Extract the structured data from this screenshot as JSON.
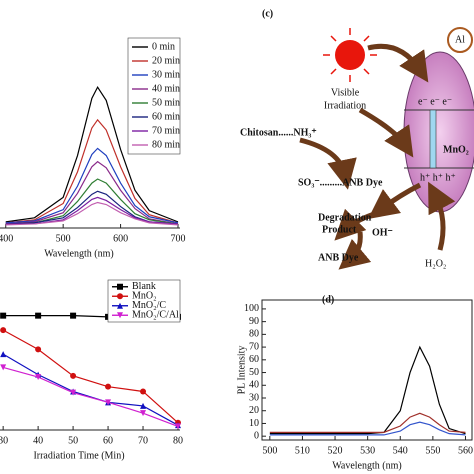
{
  "chart_data": [
    {
      "type": "line",
      "xlabel": "Wavelength (nm)",
      "legend": "upper right",
      "x": [
        400,
        450,
        500,
        525,
        550,
        560,
        575,
        600,
        625,
        650,
        700
      ],
      "xlim": [
        390,
        700
      ],
      "xticks": [
        400,
        500,
        600,
        700
      ],
      "ylim": [
        0,
        1.45
      ],
      "series": [
        {
          "name": "0 min",
          "color": "#000000",
          "values": [
            0.06,
            0.1,
            0.3,
            0.71,
            1.27,
            1.38,
            1.25,
            0.77,
            0.37,
            0.17,
            0.06
          ]
        },
        {
          "name": "20 min",
          "color": "#c0302a",
          "values": [
            0.05,
            0.08,
            0.24,
            0.55,
            0.98,
            1.06,
            0.96,
            0.6,
            0.29,
            0.13,
            0.05
          ]
        },
        {
          "name": "30 min",
          "color": "#1f3fbf",
          "values": [
            0.05,
            0.07,
            0.18,
            0.41,
            0.72,
            0.78,
            0.71,
            0.44,
            0.22,
            0.11,
            0.05
          ]
        },
        {
          "name": "40 min",
          "color": "#8a2a8a",
          "values": [
            0.04,
            0.06,
            0.15,
            0.34,
            0.6,
            0.65,
            0.59,
            0.37,
            0.19,
            0.09,
            0.04
          ]
        },
        {
          "name": "50 min",
          "color": "#2e7d32",
          "values": [
            0.04,
            0.05,
            0.12,
            0.26,
            0.44,
            0.48,
            0.44,
            0.28,
            0.14,
            0.08,
            0.04
          ]
        },
        {
          "name": "60 min",
          "color": "#1a237e",
          "values": [
            0.04,
            0.05,
            0.1,
            0.2,
            0.33,
            0.36,
            0.33,
            0.21,
            0.11,
            0.06,
            0.04
          ]
        },
        {
          "name": "70 min",
          "color": "#7b1fa2",
          "values": [
            0.04,
            0.04,
            0.08,
            0.17,
            0.28,
            0.3,
            0.27,
            0.18,
            0.1,
            0.06,
            0.04
          ]
        },
        {
          "name": "80 min",
          "color": "#c25fb0",
          "values": [
            0.03,
            0.04,
            0.07,
            0.14,
            0.23,
            0.25,
            0.23,
            0.15,
            0.09,
            0.05,
            0.03
          ]
        }
      ]
    },
    {
      "type": "line",
      "xlabel": "Irradiation Time (Min)",
      "legend": "upper right",
      "x": [
        30,
        40,
        50,
        60,
        70,
        80
      ],
      "xlim": [
        29.1,
        80
      ],
      "xticks": [
        30,
        40,
        50,
        60,
        70,
        80
      ],
      "ylim": [
        0,
        1.08
      ],
      "series": [
        {
          "name": "Blank",
          "color": "#000000",
          "marker": "square",
          "values": [
            0.95,
            0.95,
            0.95,
            0.94,
            0.94,
            0.94
          ]
        },
        {
          "name": "MnO₂",
          "color": "#d01010",
          "marker": "circle",
          "values": [
            0.83,
            0.67,
            0.45,
            0.36,
            0.32,
            0.06
          ]
        },
        {
          "name": "MnO₂/C",
          "color": "#1010c0",
          "marker": "triangle",
          "values": [
            0.63,
            0.46,
            0.32,
            0.23,
            0.2,
            0.04
          ]
        },
        {
          "name": "MnO₂/C/Al",
          "color": "#d020d0",
          "marker": "triangle-down",
          "values": [
            0.52,
            0.44,
            0.31,
            0.23,
            0.14,
            0.03
          ]
        }
      ]
    },
    {
      "type": "line",
      "label": "(d)",
      "xlabel": "Wavelength (nm)",
      "ylabel": "PL Intensity",
      "x": [
        500,
        510,
        520,
        530,
        535,
        540,
        543,
        546,
        549,
        552,
        555,
        560
      ],
      "xlim": [
        497.6,
        562
      ],
      "xticks": [
        500,
        510,
        520,
        530,
        540,
        550,
        560
      ],
      "ylim": [
        -3,
        107
      ],
      "yticks": [
        0,
        10,
        20,
        30,
        40,
        50,
        60,
        70,
        80,
        90,
        100
      ],
      "series": [
        {
          "color": "#000000",
          "values": [
            2,
            2,
            2,
            2,
            3,
            20,
            50,
            70,
            55,
            25,
            6,
            2
          ]
        },
        {
          "color": "#a0302a",
          "values": [
            3,
            3,
            3,
            3,
            3,
            8,
            15,
            18,
            15,
            9,
            4,
            3
          ]
        },
        {
          "color": "#3355cc",
          "values": [
            1,
            1,
            1,
            1,
            1,
            4,
            9,
            11,
            9,
            5,
            2,
            1
          ]
        }
      ]
    }
  ],
  "diagram": {
    "label": "(c)",
    "visible": "Visible",
    "irradiation": "Irradiation",
    "chitosan": "Chitosan......NH₃⁺",
    "so3": "SO₃⁻.........ANB Dye",
    "particle": "MnO₂",
    "degradation": "Degradation",
    "product": "Product",
    "oh": "OH⁻",
    "anb": "ANB Dye",
    "h2o2": "H₂O₂",
    "electrons": "e⁻ e⁻ e⁻",
    "holes": "h⁺ h⁺ h⁺",
    "al": "Al"
  }
}
